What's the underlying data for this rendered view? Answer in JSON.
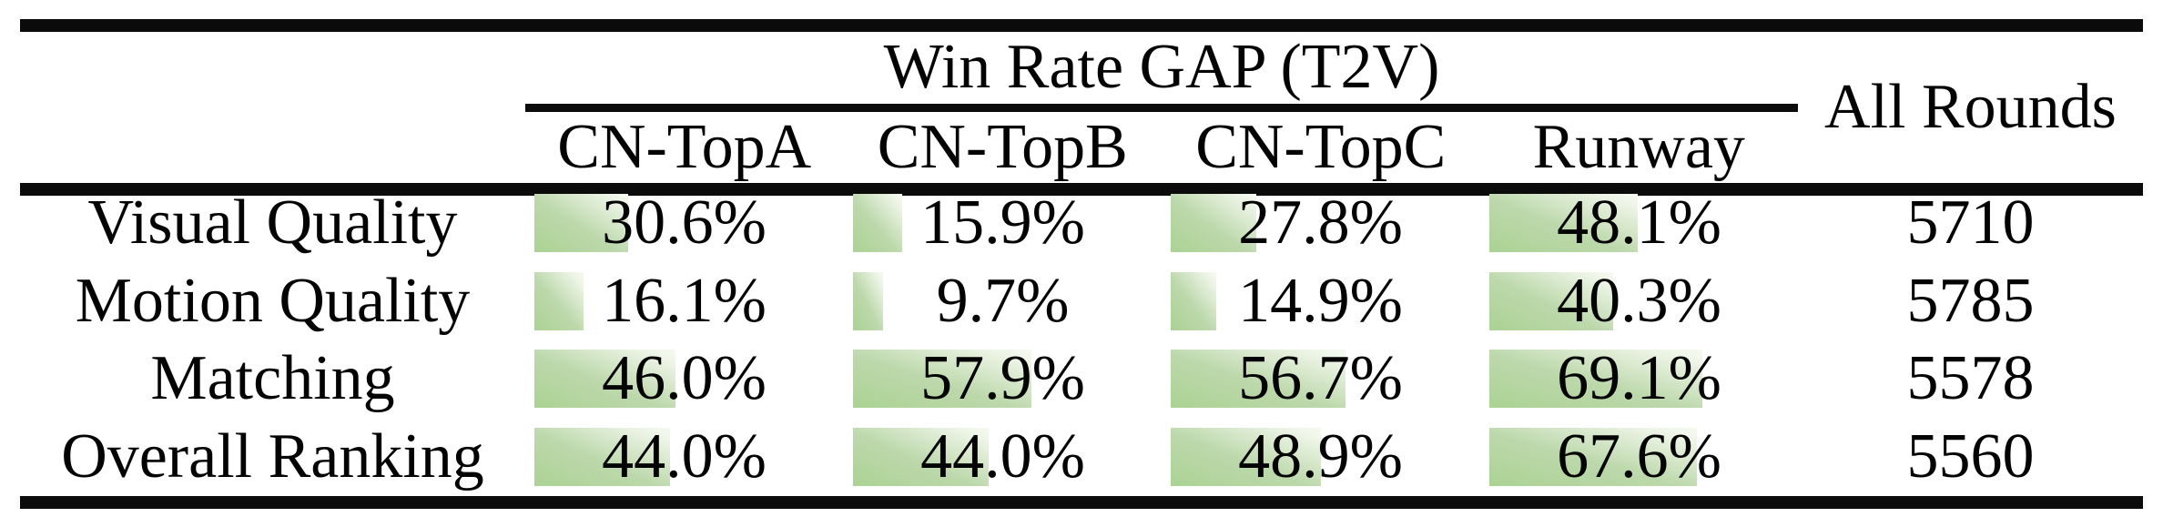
{
  "figure": {
    "group_header": "Win Rate GAP (T2V)",
    "side_header": "All Rounds",
    "method_columns": [
      "CN-TopA",
      "CN-TopB",
      "CN-TopC",
      "Runway"
    ],
    "rows": [
      {
        "label": "Visual Quality",
        "values": [
          "30.6%",
          "15.9%",
          "27.8%",
          "48.1%"
        ],
        "pcts": [
          30.6,
          15.9,
          27.8,
          48.1
        ],
        "all_rounds": "5710"
      },
      {
        "label": "Motion Quality",
        "values": [
          "16.1%",
          "9.7%",
          "14.9%",
          "40.3%"
        ],
        "pcts": [
          16.1,
          9.7,
          14.9,
          40.3
        ],
        "all_rounds": "5785"
      },
      {
        "label": "Matching",
        "values": [
          "46.0%",
          "57.9%",
          "56.7%",
          "69.1%"
        ],
        "pcts": [
          46.0,
          57.9,
          56.7,
          69.1
        ],
        "all_rounds": "5578"
      },
      {
        "label": "Overall Ranking",
        "values": [
          "44.0%",
          "44.0%",
          "48.9%",
          "67.6%"
        ],
        "pcts": [
          44.0,
          44.0,
          48.9,
          67.6
        ],
        "all_rounds": "5560"
      }
    ]
  },
  "chart_data": {
    "type": "table",
    "title": "Win Rate GAP (T2V)",
    "categories": [
      "Visual Quality",
      "Motion Quality",
      "Matching",
      "Overall Ranking"
    ],
    "series": [
      {
        "name": "CN-TopA",
        "values": [
          30.6,
          16.1,
          46.0,
          44.0
        ],
        "unit": "%"
      },
      {
        "name": "CN-TopB",
        "values": [
          15.9,
          9.7,
          57.9,
          44.0
        ],
        "unit": "%"
      },
      {
        "name": "CN-TopC",
        "values": [
          27.8,
          14.9,
          56.7,
          48.9
        ],
        "unit": "%"
      },
      {
        "name": "Runway",
        "values": [
          48.1,
          40.3,
          69.1,
          67.6
        ],
        "unit": "%"
      },
      {
        "name": "All Rounds",
        "values": [
          5710,
          5785,
          5578,
          5560
        ],
        "unit": "rounds"
      }
    ],
    "layout_hints": {
      "in_cell_data_bars": true,
      "bar_scale_percent_of_cell": 100
    }
  },
  "colors": {
    "bar_green": "#abd293",
    "bar_fade": "#f6faf2",
    "rule_black": "#0b0b0b",
    "text": "#030303"
  }
}
